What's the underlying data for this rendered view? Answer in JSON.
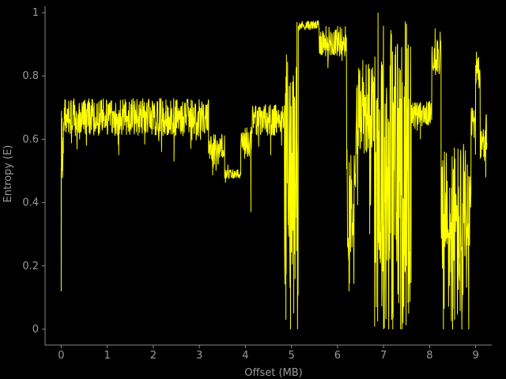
{
  "colors": {
    "background": "#000000",
    "series": "#ffff00",
    "axis": "#8a8a8a",
    "text": "#9a9a9a"
  },
  "chart_data": {
    "type": "line",
    "title": "",
    "xlabel": "Offset (MB)",
    "ylabel": "Entropy (E)",
    "xlim": [
      -0.35,
      9.35
    ],
    "ylim": [
      -0.05,
      1.02
    ],
    "xticks": [
      0,
      1,
      2,
      3,
      4,
      5,
      6,
      7,
      8,
      9
    ],
    "yticks": [
      0,
      0.2,
      0.4,
      0.6,
      0.8,
      1
    ],
    "ytick_labels": [
      "0",
      "0.2",
      "0.4",
      "0.6",
      "0.8",
      "1"
    ],
    "grid": false,
    "legend": "none",
    "segments": [
      {
        "x0": 0.0,
        "x1": 0.05,
        "base": 0.6,
        "noise": 0.1,
        "spikes": [
          [
            0.0,
            0.12
          ],
          [
            0.02,
            0.5
          ]
        ]
      },
      {
        "x0": 0.05,
        "x1": 3.2,
        "base": 0.67,
        "noise": 0.06,
        "spikes": [
          [
            0.55,
            0.58
          ],
          [
            1.25,
            0.55
          ],
          [
            2.45,
            0.53
          ],
          [
            0.4,
            0.6
          ]
        ]
      },
      {
        "x0": 3.2,
        "x1": 3.55,
        "base": 0.57,
        "noise": 0.05,
        "spikes": []
      },
      {
        "x0": 3.55,
        "x1": 3.9,
        "base": 0.49,
        "noise": 0.015,
        "spikes": [
          [
            3.62,
            0.52
          ]
        ]
      },
      {
        "x0": 3.9,
        "x1": 4.15,
        "base": 0.59,
        "noise": 0.05,
        "spikes": [
          [
            4.12,
            0.37
          ]
        ]
      },
      {
        "x0": 4.15,
        "x1": 4.85,
        "base": 0.66,
        "noise": 0.05,
        "spikes": [
          [
            4.55,
            0.55
          ]
        ]
      },
      {
        "x0": 4.85,
        "x1": 5.15,
        "base": 0.5,
        "noise": 0.4,
        "spikes": [
          [
            4.88,
            0.03
          ],
          [
            4.98,
            0.0
          ],
          [
            5.05,
            0.05
          ],
          [
            5.12,
            0.97
          ]
        ]
      },
      {
        "x0": 5.15,
        "x1": 5.6,
        "base": 0.96,
        "noise": 0.015,
        "spikes": []
      },
      {
        "x0": 5.6,
        "x1": 6.2,
        "base": 0.91,
        "noise": 0.05,
        "spikes": []
      },
      {
        "x0": 6.2,
        "x1": 6.4,
        "base": 0.4,
        "noise": 0.2,
        "spikes": [
          [
            6.25,
            0.12
          ],
          [
            6.3,
            0.38
          ]
        ]
      },
      {
        "x0": 6.4,
        "x1": 6.8,
        "base": 0.7,
        "noise": 0.15,
        "spikes": [
          [
            6.55,
            0.85
          ],
          [
            6.7,
            0.3
          ]
        ]
      },
      {
        "x0": 6.8,
        "x1": 7.6,
        "base": 0.5,
        "noise": 0.5,
        "spikes": [
          [
            6.88,
            1.0
          ],
          [
            7.0,
            0.0
          ],
          [
            7.2,
            0.0
          ],
          [
            7.4,
            0.0
          ],
          [
            7.5,
            0.95
          ]
        ]
      },
      {
        "x0": 7.6,
        "x1": 8.05,
        "base": 0.68,
        "noise": 0.04,
        "spikes": [
          [
            7.8,
            0.6
          ]
        ]
      },
      {
        "x0": 8.05,
        "x1": 8.25,
        "base": 0.87,
        "noise": 0.07,
        "spikes": [
          [
            8.12,
            0.95
          ]
        ]
      },
      {
        "x0": 8.25,
        "x1": 8.9,
        "base": 0.3,
        "noise": 0.3,
        "spikes": [
          [
            8.3,
            0.0
          ],
          [
            8.5,
            0.0
          ],
          [
            8.7,
            0.0
          ],
          [
            8.85,
            0.0
          ]
        ]
      },
      {
        "x0": 8.9,
        "x1": 9.0,
        "base": 0.65,
        "noise": 0.05,
        "spikes": []
      },
      {
        "x0": 9.0,
        "x1": 9.1,
        "base": 0.82,
        "noise": 0.06,
        "spikes": []
      },
      {
        "x0": 9.1,
        "x1": 9.25,
        "base": 0.6,
        "noise": 0.08,
        "spikes": [
          [
            9.22,
            0.48
          ]
        ]
      }
    ]
  }
}
